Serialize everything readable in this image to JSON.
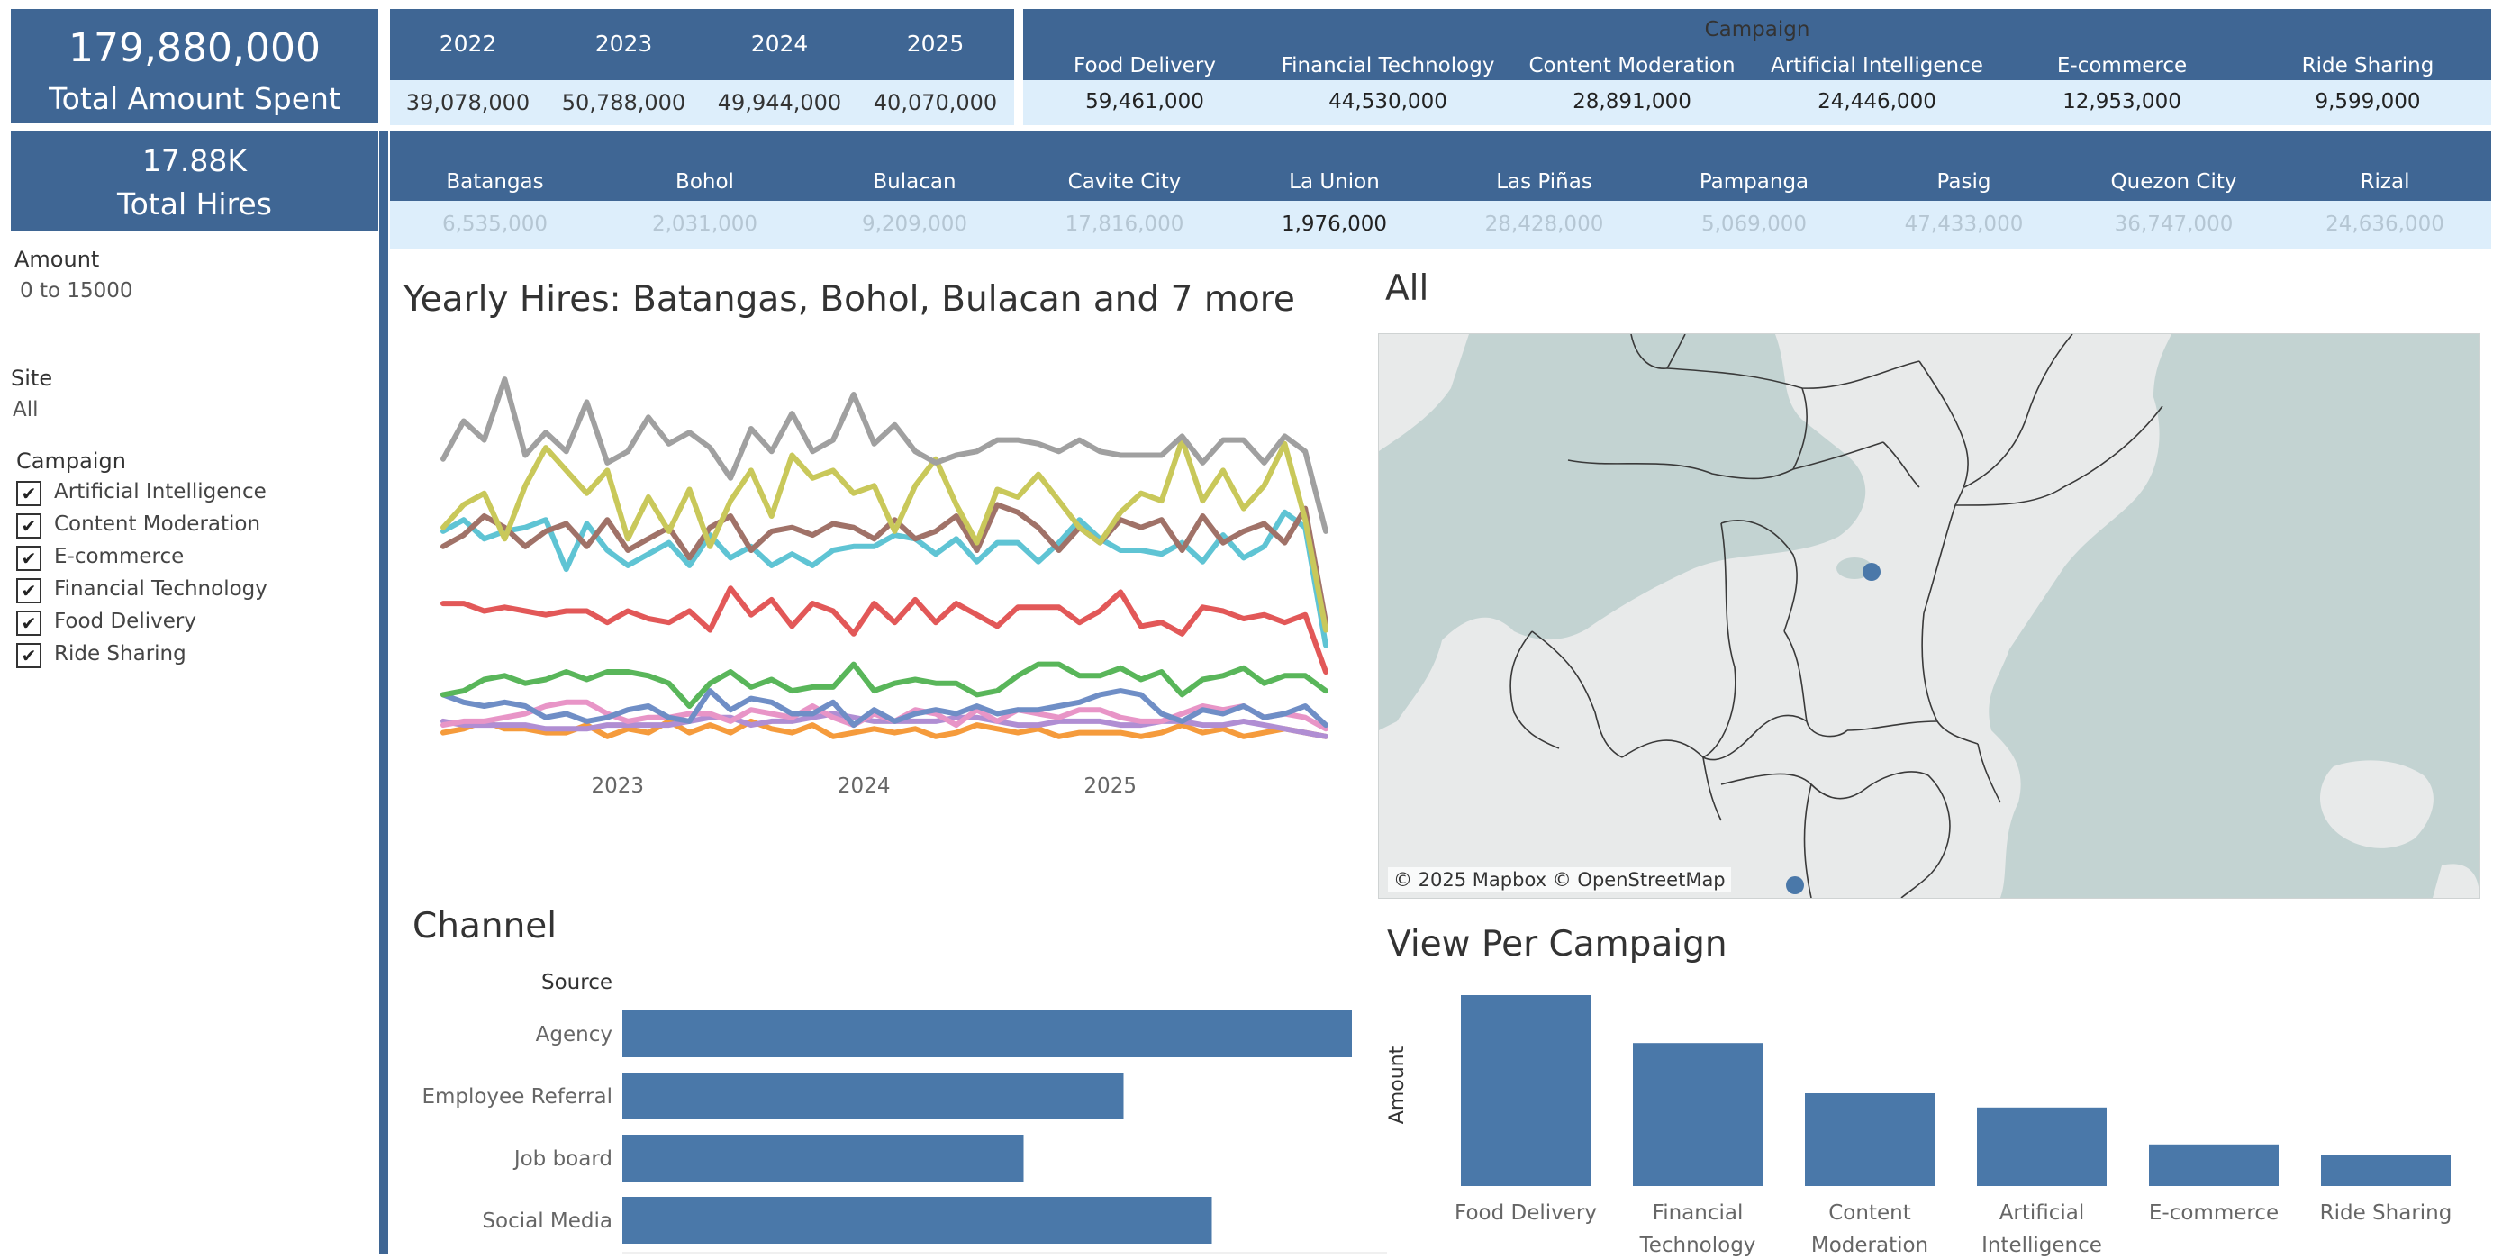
{
  "kpi": {
    "total_amount_value": "179,880,000",
    "total_amount_label": "Total Amount Spent",
    "total_hires_value": "17.88K",
    "total_hires_label": "Total Hires"
  },
  "year_table": {
    "years": [
      "2022",
      "2023",
      "2024",
      "2025"
    ],
    "values": [
      "39,078,000",
      "50,788,000",
      "49,944,000",
      "40,070,000"
    ]
  },
  "campaign_table": {
    "title": "Campaign",
    "campaigns": [
      "Food Delivery",
      "Financial Technology",
      "Content Moderation",
      "Artificial Intelligence",
      "E-commerce",
      "Ride Sharing"
    ],
    "values": [
      "59,461,000",
      "44,530,000",
      "28,891,000",
      "24,446,000",
      "12,953,000",
      "9,599,000"
    ]
  },
  "site_table": {
    "sites": [
      "Batangas",
      "Bohol",
      "Bulacan",
      "Cavite City",
      "La Union",
      "Las Piñas",
      "Pampanga",
      "Pasig",
      "Quezon City",
      "Rizal"
    ],
    "values": [
      "6,535,000",
      "2,031,000",
      "9,209,000",
      "17,816,000",
      "1,976,000",
      "28,428,000",
      "5,069,000",
      "47,433,000",
      "36,747,000",
      "24,636,000"
    ],
    "active_index": 4
  },
  "filters": {
    "amount_label": "Amount",
    "amount_value": "0 to 15000",
    "site_label": "Site",
    "site_value": "All",
    "campaign_label": "Campaign",
    "campaign_options": [
      {
        "label": "Artificial Intelligence",
        "checked": true
      },
      {
        "label": "Content Moderation",
        "checked": true
      },
      {
        "label": "E-commerce",
        "checked": true
      },
      {
        "label": "Financial Technology",
        "checked": true
      },
      {
        "label": "Food Delivery",
        "checked": true
      },
      {
        "label": "Ride Sharing",
        "checked": true
      }
    ],
    "check_glyph": "✔"
  },
  "line_chart": {
    "title": "Yearly Hires: Batangas, Bohol, Bulacan and 7 more"
  },
  "map": {
    "title": "All",
    "credit": "© 2025 Mapbox © OpenStreetMap",
    "colors": {
      "water": "#c3d3d2",
      "land": "#e8eaea",
      "point": "#4a78a9"
    }
  },
  "chart_data": [
    {
      "type": "line",
      "title": "Yearly Hires: Batangas, Bohol, Bulacan and 7 more",
      "x_ticks": [
        "2023",
        "2024",
        "2025"
      ],
      "x_tick_positions": [
        8.5,
        20.5,
        32.5
      ],
      "y_range": [
        0,
        100
      ],
      "grid": false,
      "series": [
        {
          "color": "#a0a0a0",
          "values": [
            74,
            84,
            79,
            95,
            75,
            81,
            76,
            89,
            73,
            76,
            85,
            78,
            81,
            77,
            69,
            82,
            76,
            86,
            76,
            79,
            91,
            78,
            83,
            76,
            73,
            75,
            76,
            79,
            79,
            78,
            76,
            79,
            76,
            75,
            75,
            75,
            80,
            73,
            79,
            79,
            73,
            80,
            76,
            55
          ]
        },
        {
          "color": "#c9c85a",
          "values": [
            56,
            62,
            65,
            53,
            67,
            77,
            71,
            65,
            71,
            53,
            64,
            55,
            66,
            51,
            63,
            71,
            59,
            75,
            69,
            71,
            65,
            67,
            55,
            67,
            74,
            62,
            52,
            66,
            64,
            70,
            63,
            56,
            52,
            60,
            65,
            63,
            79,
            63,
            71,
            61,
            67,
            78,
            58,
            29
          ]
        },
        {
          "color": "#a07268",
          "values": [
            51,
            54,
            59,
            56,
            51,
            55,
            57,
            51,
            58,
            50,
            53,
            56,
            48,
            56,
            59,
            50,
            55,
            56,
            54,
            57,
            56,
            53,
            58,
            53,
            55,
            59,
            50,
            62,
            60,
            56,
            50,
            56,
            52,
            58,
            56,
            58,
            50,
            59,
            52,
            55,
            57,
            52,
            61,
            31
          ]
        },
        {
          "color": "#5fc4d4",
          "values": [
            55,
            58,
            53,
            55,
            56,
            58,
            45,
            57,
            50,
            46,
            49,
            52,
            46,
            54,
            48,
            51,
            46,
            49,
            46,
            50,
            51,
            51,
            54,
            53,
            49,
            53,
            47,
            52,
            52,
            47,
            52,
            58,
            53,
            50,
            50,
            49,
            52,
            47,
            54,
            48,
            51,
            60,
            56,
            25
          ]
        },
        {
          "color": "#e25858",
          "values": [
            36,
            36,
            34,
            35,
            34,
            33,
            34,
            34,
            31,
            34,
            32,
            31,
            34,
            29,
            40,
            33,
            37,
            30,
            36,
            34,
            28,
            36,
            31,
            37,
            31,
            36,
            33,
            30,
            35,
            35,
            35,
            31,
            34,
            39,
            30,
            31,
            28,
            35,
            34,
            32,
            33,
            31,
            33,
            18
          ]
        },
        {
          "color": "#59b65a",
          "values": [
            12,
            13,
            16,
            17,
            15,
            16,
            18,
            16,
            18,
            18,
            17,
            15,
            9,
            15,
            18,
            14,
            16,
            13,
            14,
            14,
            20,
            13,
            15,
            16,
            15,
            15,
            12,
            13,
            17,
            20,
            20,
            17,
            17,
            19,
            16,
            18,
            12,
            16,
            17,
            19,
            15,
            17,
            17,
            13
          ]
        },
        {
          "color": "#6f8ec6",
          "values": [
            12,
            10,
            9,
            10,
            9,
            6,
            7,
            5,
            6,
            8,
            9,
            6,
            5,
            13,
            8,
            11,
            10,
            7,
            7,
            10,
            4,
            8,
            5,
            7,
            8,
            7,
            9,
            7,
            8,
            8,
            9,
            10,
            12,
            13,
            12,
            7,
            5,
            8,
            7,
            9,
            6,
            7,
            9,
            4
          ]
        },
        {
          "color": "#e895c7",
          "values": [
            4,
            5,
            5,
            6,
            7,
            9,
            10,
            10,
            7,
            5,
            6,
            6,
            7,
            7,
            5,
            8,
            7,
            6,
            9,
            6,
            4,
            7,
            5,
            8,
            7,
            4,
            8,
            5,
            8,
            7,
            6,
            8,
            8,
            6,
            5,
            5,
            7,
            9,
            8,
            9,
            6,
            7,
            6,
            3
          ]
        },
        {
          "color": "#b08ed3",
          "values": [
            5,
            4,
            4,
            4,
            4,
            3,
            3,
            3,
            4,
            4,
            4,
            4,
            5,
            6,
            6,
            4,
            5,
            5,
            6,
            7,
            6,
            5,
            5,
            5,
            5,
            6,
            6,
            5,
            4,
            4,
            5,
            5,
            5,
            4,
            4,
            5,
            5,
            4,
            4,
            5,
            4,
            3,
            2,
            1
          ]
        },
        {
          "color": "#f59b3c",
          "values": [
            2,
            3,
            5,
            3,
            3,
            2,
            2,
            4,
            1,
            3,
            2,
            5,
            2,
            4,
            2,
            5,
            3,
            2,
            4,
            1,
            2,
            3,
            2,
            3,
            1,
            2,
            4,
            3,
            2,
            3,
            1,
            2,
            2,
            2,
            1,
            2,
            4,
            2,
            3,
            1,
            2,
            3,
            2,
            1
          ]
        }
      ]
    },
    {
      "type": "bar",
      "orientation": "horizontal",
      "title": "Channel",
      "ylabel": "Source",
      "categories": [
        "Agency",
        "Employee Referral",
        "Job board",
        "Social Media"
      ],
      "values": [
        100,
        68.7,
        55,
        80.8
      ],
      "color": "#4a78a9"
    },
    {
      "type": "bar",
      "title": "View Per Campaign",
      "ylabel": "Amount",
      "categories": [
        [
          "Food Delivery"
        ],
        [
          "Financial",
          "Technology"
        ],
        [
          "Content",
          "Moderation"
        ],
        [
          "Artificial",
          "Intelligence"
        ],
        [
          "E-commerce"
        ],
        [
          "Ride Sharing"
        ]
      ],
      "values": [
        59461000,
        44530000,
        28891000,
        24446000,
        12953000,
        9599000
      ],
      "color": "#4a78a9"
    }
  ]
}
